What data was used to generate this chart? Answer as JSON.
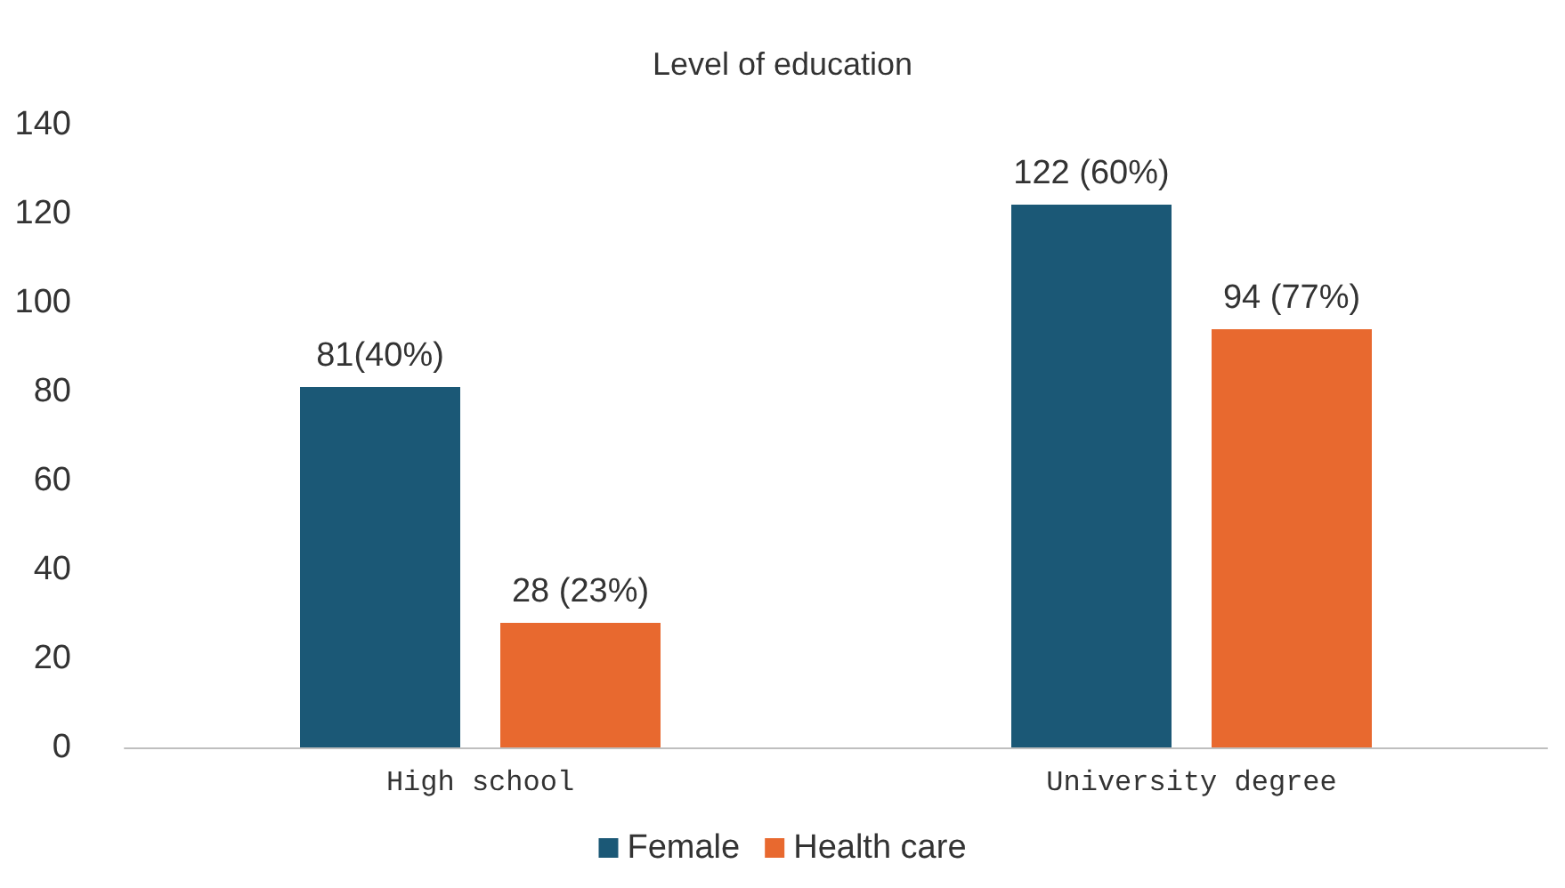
{
  "chart_data": {
    "type": "bar",
    "title": "Level of education",
    "categories": [
      "High school",
      "University degree"
    ],
    "series": [
      {
        "name": "Female",
        "color": "#1b5876",
        "values": [
          81,
          122
        ],
        "value_labels": [
          "81(40%)",
          "122 (60%)"
        ]
      },
      {
        "name": "Health care",
        "color": "#e8692f",
        "values": [
          28,
          94
        ],
        "value_labels": [
          "28 (23%)",
          "94 (77%)"
        ]
      }
    ],
    "ylim": [
      0,
      140
    ],
    "yticks": [
      0,
      20,
      40,
      60,
      80,
      100,
      120,
      140
    ],
    "grid": false,
    "legend": "bottom"
  }
}
